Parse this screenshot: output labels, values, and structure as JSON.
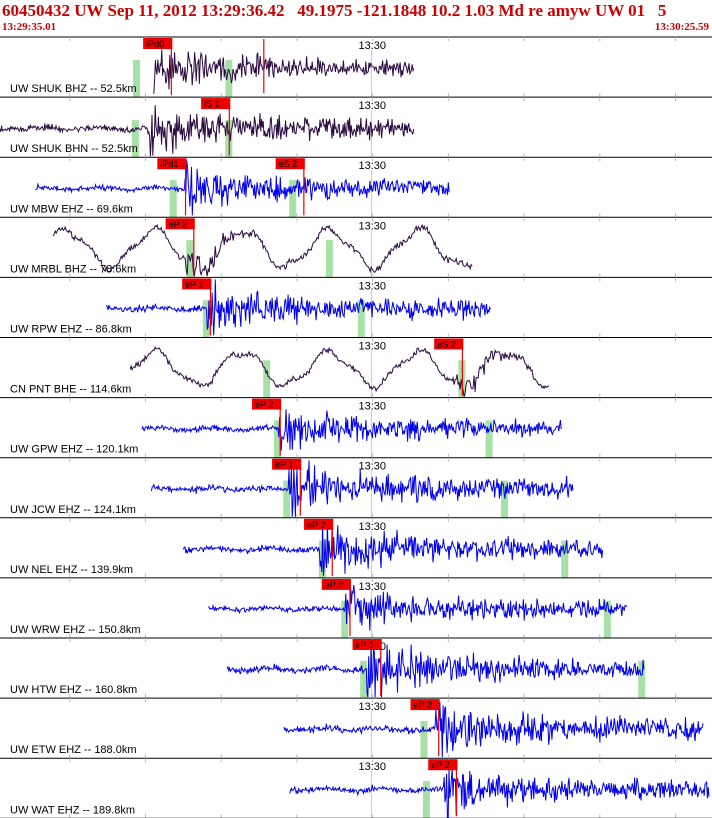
{
  "header": {
    "title": "60450432 UW Sep 11, 2012 13:29:36.42   49.1975 -121.1848 10.2 1.03 Md re amyw UW 01   5",
    "start_time": "13:29:35.01",
    "end_time": "13:30:25.59"
  },
  "colors": {
    "dark_trace": "#2a0a40",
    "blue_trace": "#0000ee",
    "pick": "#ee0000",
    "window": "#a8e0a8",
    "grid": "#bbbbbb"
  },
  "chart_data": {
    "type": "line",
    "title": "60450432 UW Sep 11, 2012 13:29:36.42   49.1975 -121.1848 10.2 1.03 Md re amyw UW 01   5",
    "x_range": [
      "13:29:35.01",
      "13:30:25.59"
    ],
    "tick_label": "13:30",
    "traces": [
      {
        "label": "UW SHUK BHZ -- 52.5km",
        "color": "dark",
        "data_start": 13.0,
        "data_end": 35.0,
        "onset": 12.8,
        "amp": 0.35,
        "style": "quake",
        "picks": [
          {
            "label": "iPd0",
            "t": 12.1
          },
          {
            "label": "",
            "t": 22.3
          }
        ],
        "windows": [
          11.5,
          19.3
        ]
      },
      {
        "label": "UW SHUK BHN -- 52.5km",
        "color": "dark",
        "data_start": 0.0,
        "data_end": 35.0,
        "onset": 12.5,
        "amp": 0.4,
        "style": "quake",
        "picks": [
          {
            "label": "iS 1",
            "t": 17.0
          }
        ],
        "windows": [
          11.4,
          19.3
        ]
      },
      {
        "label": "UW MBW EHZ -- 69.6km",
        "color": "blue",
        "data_start": 3.0,
        "data_end": 38.0,
        "onset": 15.6,
        "amp": 0.35,
        "style": "quake",
        "picks": [
          {
            "label": "iPd1",
            "t": 13.3
          },
          {
            "label": "eS 2",
            "t": 23.3
          }
        ],
        "windows": [
          14.6,
          24.7
        ]
      },
      {
        "label": "UW MRBL BHZ -- 78.6km",
        "color": "dark",
        "data_start": 4.5,
        "data_end": 40.0,
        "onset": 16.4,
        "amp": 0.55,
        "style": "swell",
        "picks": [
          {
            "label": "eP 2",
            "t": 14.0
          }
        ],
        "windows": [
          16.0,
          27.8
        ]
      },
      {
        "label": "UW RPW EHZ -- 86.8km",
        "color": "blue",
        "data_start": 9.0,
        "data_end": 41.5,
        "onset": 17.5,
        "amp": 0.4,
        "style": "quake",
        "picks": [
          {
            "label": "eP 1",
            "t": 15.4
          }
        ],
        "windows": [
          17.4,
          30.5
        ]
      },
      {
        "label": "CN PNT BHE -- 114.6km",
        "color": "dark",
        "data_start": 11.0,
        "data_end": 46.5,
        "onset": 39.0,
        "amp": 0.5,
        "style": "swell",
        "picks": [
          {
            "label": "eS 2",
            "t": 36.7
          }
        ],
        "windows": [
          22.5,
          39.0
        ]
      },
      {
        "label": "UW GPW EHZ -- 120.1km",
        "color": "blue",
        "data_start": 12.0,
        "data_end": 47.5,
        "onset": 23.5,
        "amp": 0.35,
        "style": "quake",
        "picks": [
          {
            "label": "eP 2",
            "t": 21.3
          }
        ],
        "windows": [
          23.4,
          41.3
        ]
      },
      {
        "label": "UW JCW EHZ -- 124.1km",
        "color": "blue",
        "data_start": 12.8,
        "data_end": 48.5,
        "onset": 24.4,
        "amp": 0.42,
        "style": "quake",
        "picks": [
          {
            "label": "eP 1",
            "t": 23.0
          }
        ],
        "windows": [
          24.2,
          42.6
        ]
      },
      {
        "label": "UW NEL EHZ -- 139.9km",
        "color": "blue",
        "data_start": 15.5,
        "data_end": 51.0,
        "onset": 27.0,
        "amp": 0.4,
        "style": "quake",
        "picks": [
          {
            "label": "eP 2",
            "t": 25.7
          }
        ],
        "windows": [
          27.2,
          47.7
        ]
      },
      {
        "label": "UW WRW EHZ -- 150.8km",
        "color": "blue",
        "data_start": 17.6,
        "data_end": 53.0,
        "onset": 29.2,
        "amp": 0.35,
        "style": "quake",
        "picks": [
          {
            "label": "eP 2",
            "t": 27.2
          }
        ],
        "windows": [
          29.1,
          51.3
        ]
      },
      {
        "label": "UW HTW EHZ -- 160.8km",
        "color": "blue",
        "data_start": 19.2,
        "data_end": 54.5,
        "onset": 31.0,
        "amp": 0.42,
        "style": "quake",
        "picks": [
          {
            "label": "eP 1",
            "t": 29.8
          }
        ],
        "windows": [
          30.7,
          54.2
        ]
      },
      {
        "label": "UW ETW EHZ -- 188.0km",
        "color": "blue",
        "data_start": 24.0,
        "data_end": 59.5,
        "onset": 36.8,
        "amp": 0.45,
        "style": "quake",
        "picks": [
          {
            "label": "eP 2",
            "t": 34.7
          }
        ],
        "windows": [
          35.8
        ]
      },
      {
        "label": "UW WAT EHZ -- 189.8km",
        "color": "blue",
        "data_start": 24.5,
        "data_end": 60.0,
        "onset": 37.5,
        "amp": 0.4,
        "style": "quake",
        "picks": [
          {
            "label": "eP 2",
            "t": 36.2
          }
        ],
        "windows": [
          36.0
        ]
      }
    ]
  }
}
